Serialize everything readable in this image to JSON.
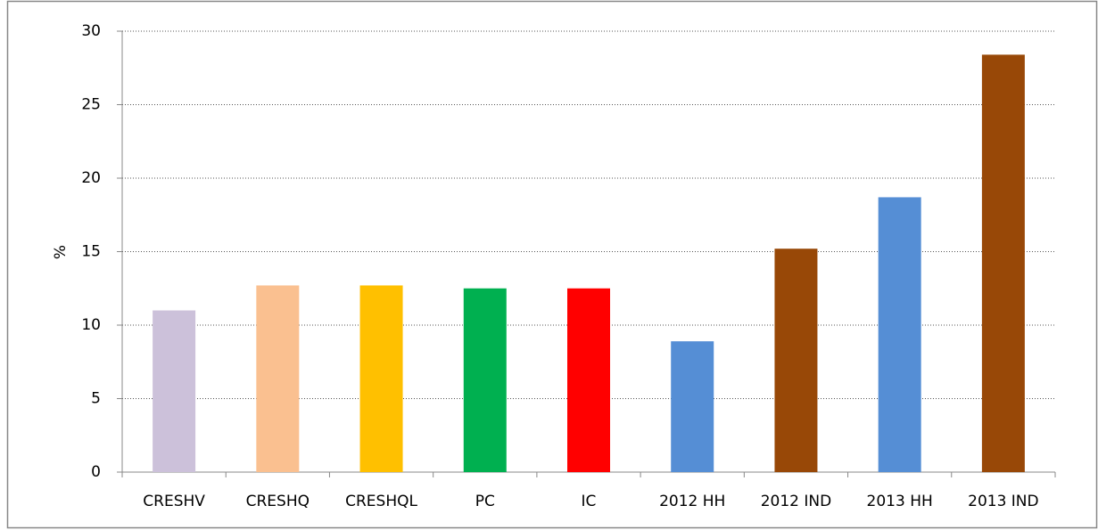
{
  "chart_data": {
    "type": "bar",
    "ylabel": "%",
    "categories": [
      "CRESHV",
      "CRESHQ",
      "CRESHQL",
      "PC",
      "IC",
      "2012 HH",
      "2012 IND",
      "2013 HH",
      "2013 IND"
    ],
    "values": [
      11.0,
      12.7,
      12.7,
      12.5,
      12.5,
      8.9,
      15.2,
      18.7,
      28.4
    ],
    "colors": [
      "#ccc1da",
      "#fac090",
      "#ffc000",
      "#00b050",
      "#ff0000",
      "#558ed5",
      "#984807",
      "#558ed5",
      "#984807"
    ],
    "ylim": [
      0,
      30
    ],
    "yticks": [
      0,
      5,
      10,
      15,
      20,
      25,
      30
    ],
    "grid": true
  }
}
